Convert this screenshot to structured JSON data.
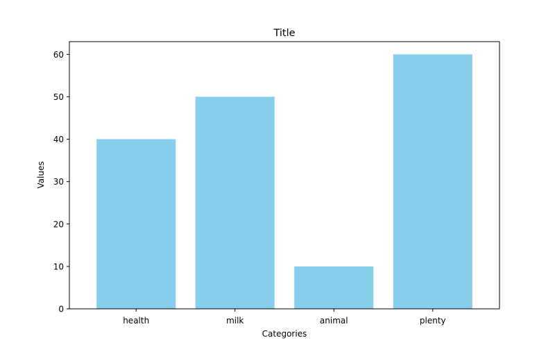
{
  "chart_data": {
    "type": "bar",
    "title": "Title",
    "xlabel": "Categories",
    "ylabel": "Values",
    "categories": [
      "health",
      "milk",
      "animal",
      "plenty"
    ],
    "values": [
      40,
      50,
      10,
      60
    ],
    "ylim": [
      0,
      63
    ],
    "yticks": [
      0,
      10,
      20,
      30,
      40,
      50,
      60
    ],
    "bar_color": "#87ceeb",
    "grid": false,
    "legend": "none"
  }
}
